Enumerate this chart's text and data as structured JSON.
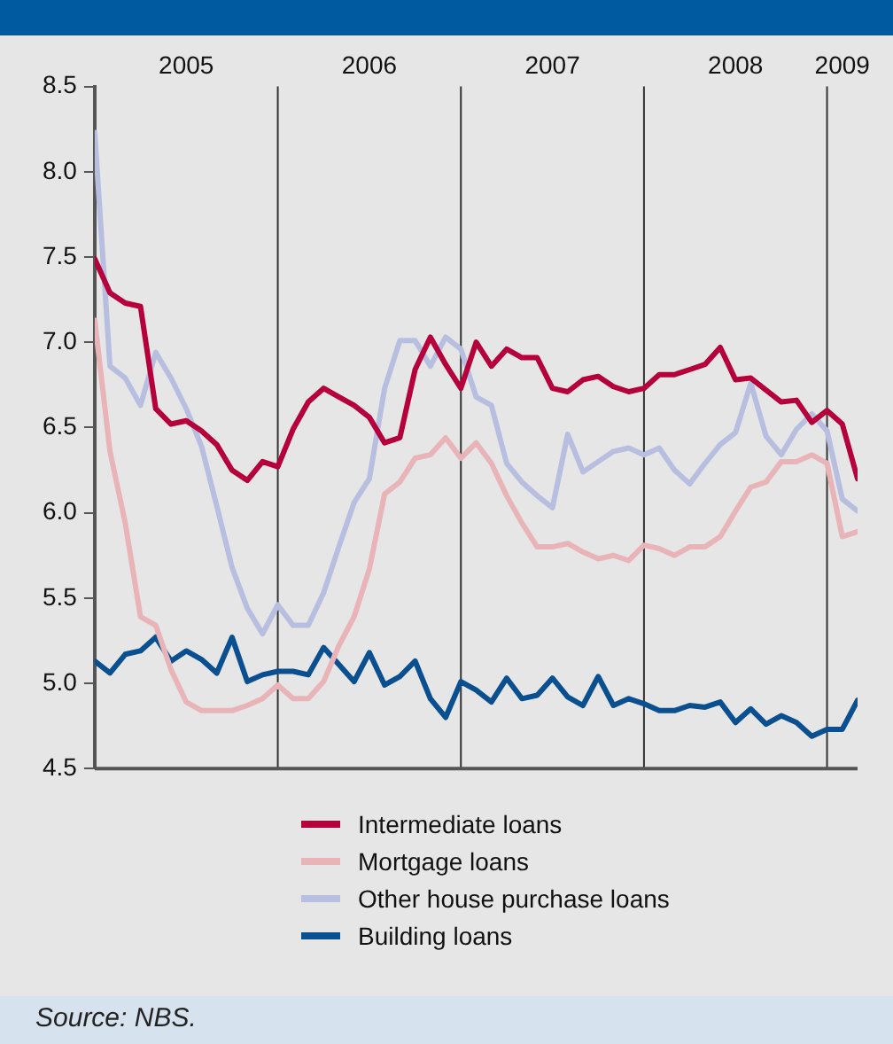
{
  "chart_data": {
    "type": "line",
    "x": [
      "2005-01",
      "2005-02",
      "2005-03",
      "2005-04",
      "2005-05",
      "2005-06",
      "2005-07",
      "2005-08",
      "2005-09",
      "2005-10",
      "2005-11",
      "2005-12",
      "2006-01",
      "2006-02",
      "2006-03",
      "2006-04",
      "2006-05",
      "2006-06",
      "2006-07",
      "2006-08",
      "2006-09",
      "2006-10",
      "2006-11",
      "2006-12",
      "2007-01",
      "2007-02",
      "2007-03",
      "2007-04",
      "2007-05",
      "2007-06",
      "2007-07",
      "2007-08",
      "2007-09",
      "2007-10",
      "2007-11",
      "2007-12",
      "2008-01",
      "2008-02",
      "2008-03",
      "2008-04",
      "2008-05",
      "2008-06",
      "2008-07",
      "2008-08",
      "2008-09",
      "2008-10",
      "2008-11",
      "2008-12",
      "2009-01",
      "2009-02",
      "2009-03"
    ],
    "series": [
      {
        "name": "Intermediate loans",
        "color": "#b5003c",
        "values": [
          7.49,
          7.29,
          7.23,
          7.21,
          6.61,
          6.52,
          6.54,
          6.48,
          6.4,
          6.25,
          6.19,
          6.3,
          6.27,
          6.49,
          6.65,
          6.73,
          6.68,
          6.63,
          6.56,
          6.41,
          6.44,
          6.84,
          7.03,
          6.87,
          6.73,
          7.0,
          6.86,
          6.96,
          6.91,
          6.91,
          6.73,
          6.71,
          6.78,
          6.8,
          6.74,
          6.71,
          6.73,
          6.81,
          6.81,
          6.84,
          6.87,
          6.97,
          6.78,
          6.79,
          6.72,
          6.65,
          6.66,
          6.53,
          6.6,
          6.52,
          6.2
        ]
      },
      {
        "name": "Mortgage loans",
        "color": "#e8b4b8",
        "values": [
          7.13,
          6.36,
          5.94,
          5.39,
          5.34,
          5.08,
          4.89,
          4.84,
          4.84,
          4.84,
          4.87,
          4.91,
          4.99,
          4.91,
          4.91,
          5.01,
          5.22,
          5.39,
          5.67,
          6.11,
          6.18,
          6.32,
          6.34,
          6.44,
          6.32,
          6.41,
          6.29,
          6.1,
          5.94,
          5.8,
          5.8,
          5.82,
          5.77,
          5.73,
          5.75,
          5.72,
          5.81,
          5.79,
          5.75,
          5.8,
          5.8,
          5.86,
          6.01,
          6.15,
          6.18,
          6.3,
          6.3,
          6.34,
          6.29,
          5.86,
          5.89
        ]
      },
      {
        "name": "Other house purchase loans",
        "color": "#b8bedf",
        "values": [
          8.23,
          6.86,
          6.79,
          6.63,
          6.94,
          6.79,
          6.61,
          6.39,
          6.04,
          5.68,
          5.44,
          5.29,
          5.46,
          5.34,
          5.34,
          5.53,
          5.8,
          6.06,
          6.2,
          6.73,
          7.01,
          7.01,
          6.86,
          7.03,
          6.96,
          6.68,
          6.63,
          6.29,
          6.18,
          6.1,
          6.03,
          6.46,
          6.24,
          6.3,
          6.36,
          6.38,
          6.34,
          6.38,
          6.25,
          6.17,
          6.29,
          6.4,
          6.47,
          6.76,
          6.45,
          6.34,
          6.49,
          6.58,
          6.48,
          6.08,
          6.01
        ]
      },
      {
        "name": "Building loans",
        "color": "#0a4f8f",
        "values": [
          5.13,
          5.06,
          5.17,
          5.19,
          5.27,
          5.13,
          5.19,
          5.14,
          5.06,
          5.27,
          5.01,
          5.05,
          5.07,
          5.07,
          5.05,
          5.21,
          5.11,
          5.01,
          5.18,
          4.99,
          5.04,
          5.13,
          4.91,
          4.8,
          5.01,
          4.96,
          4.89,
          5.03,
          4.91,
          4.93,
          5.03,
          4.92,
          4.87,
          5.04,
          4.87,
          4.91,
          4.88,
          4.84,
          4.84,
          4.87,
          4.86,
          4.89,
          4.77,
          4.85,
          4.76,
          4.81,
          4.77,
          4.69,
          4.73,
          4.73,
          4.9
        ]
      }
    ],
    "xlim": [
      "2005-01",
      "2009-03"
    ],
    "xticks": [
      {
        "value": "2005-07",
        "label": "2005"
      },
      {
        "value": "2006-07",
        "label": "2006"
      },
      {
        "value": "2007-07",
        "label": "2007"
      },
      {
        "value": "2008-07",
        "label": "2008"
      },
      {
        "value": "2009-02",
        "label": "2009"
      }
    ],
    "ylim": [
      4.5,
      8.5
    ],
    "yticks": [
      4.5,
      {
        "value": 5,
        "label": "5.0"
      },
      5.5,
      {
        "value": 6,
        "label": "6.0"
      },
      6.5,
      {
        "value": 7,
        "label": "7.0"
      },
      7.5,
      {
        "value": 8,
        "label": "8.0"
      },
      8.5
    ],
    "ref_lines": [
      {
        "axis": "x",
        "value": "2006-01",
        "color": "#333333"
      },
      {
        "axis": "x",
        "value": "2007-01",
        "color": "#333333"
      },
      {
        "axis": "x",
        "value": "2008-01",
        "color": "#333333"
      },
      {
        "axis": "x",
        "value": "2009-01",
        "color": "#333333"
      }
    ],
    "annotations": [
      "Source: NBS."
    ],
    "legend": "bottom",
    "grid": false,
    "marker": "none",
    "line_style": "solid"
  }
}
